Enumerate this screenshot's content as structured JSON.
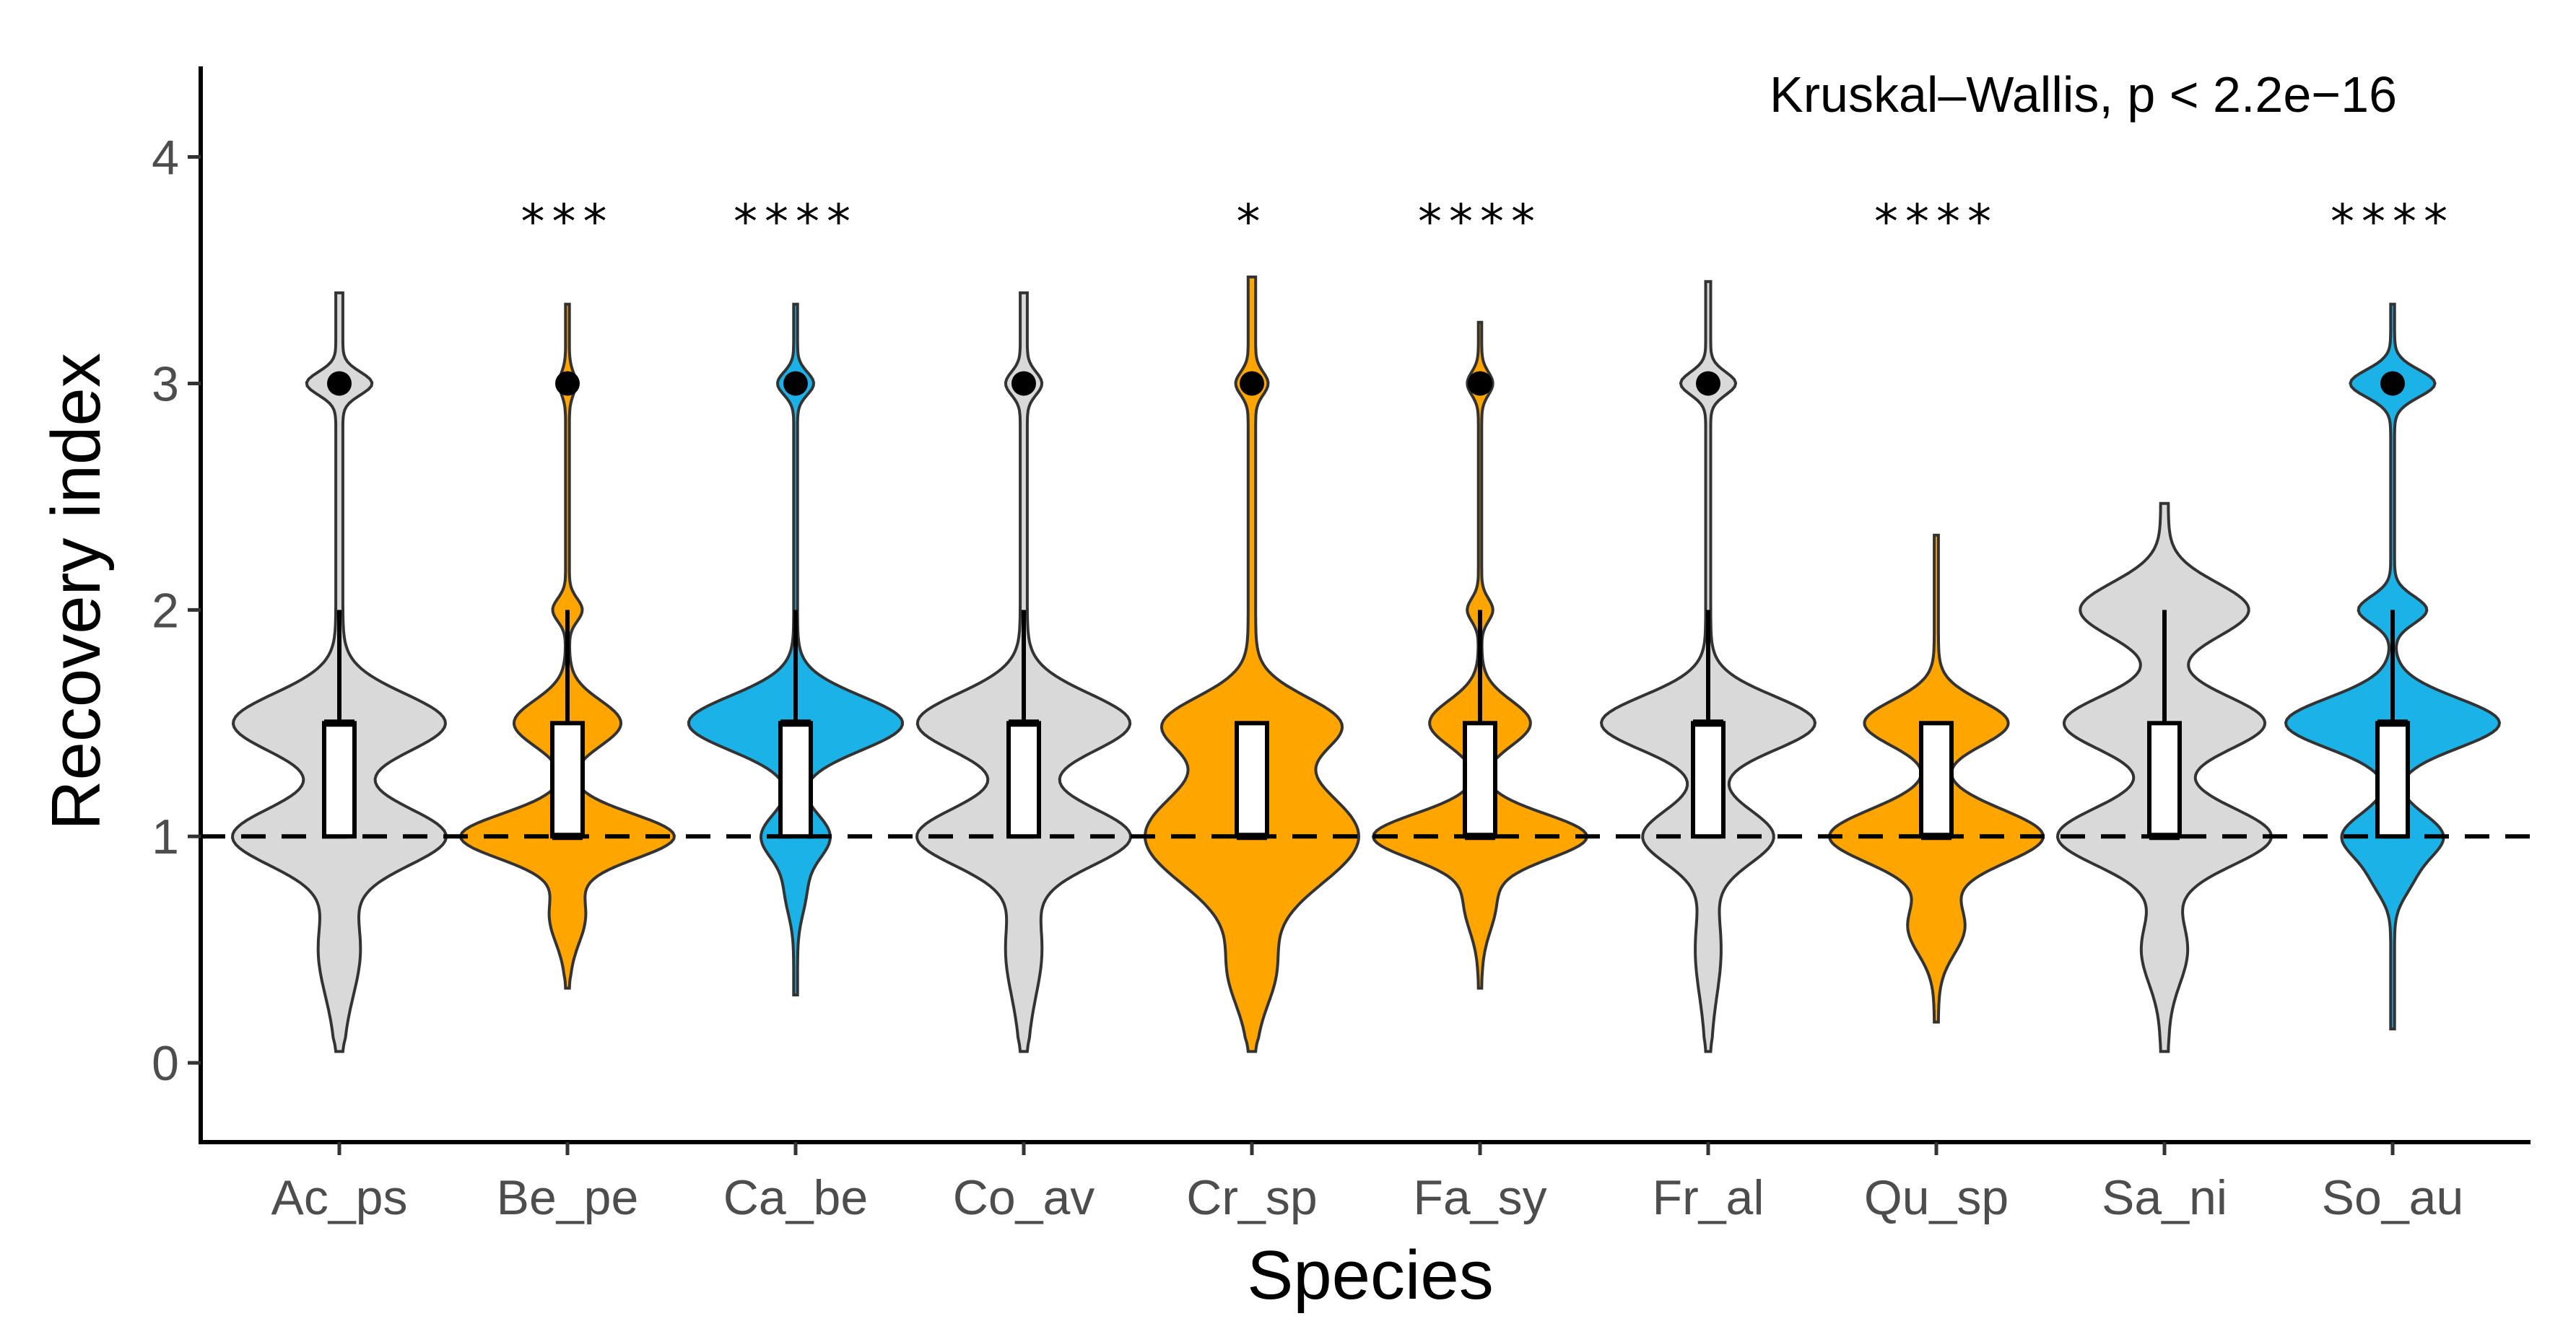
{
  "chart_data": {
    "type": "violin",
    "title": "",
    "xlabel": "Species",
    "ylabel": "Recovery index",
    "ylim": [
      -0.35,
      4.4
    ],
    "yticks": [
      0,
      1,
      2,
      3,
      4
    ],
    "reference_line": {
      "y": 1,
      "style": "dashed"
    },
    "annotation": "Kruskal–Wallis, p < 2.2e−16",
    "colors": {
      "gray": "#d9d9d9",
      "orange": "#ffa500",
      "blue": "#1bb2e8"
    },
    "categories": [
      "Ac_ps",
      "Be_pe",
      "Ca_be",
      "Co_av",
      "Cr_sp",
      "Fa_sy",
      "Fr_al",
      "Qu_sp",
      "Sa_ni",
      "So_au"
    ],
    "significance": [
      "",
      "***",
      "****",
      "",
      "*",
      "****",
      "",
      "****",
      "",
      "****"
    ],
    "fill_group": [
      "gray",
      "orange",
      "blue",
      "gray",
      "orange",
      "orange",
      "gray",
      "orange",
      "gray",
      "blue"
    ],
    "box_q1": [
      1,
      1,
      1,
      1,
      1,
      1,
      1,
      1,
      1,
      1
    ],
    "box_median": [
      1.5,
      1.0,
      1.5,
      1.5,
      1.0,
      1.0,
      1.5,
      1.0,
      1.0,
      1.5
    ],
    "box_q3": [
      1.5,
      1.5,
      1.5,
      1.5,
      1.5,
      1.5,
      1.5,
      1.5,
      1.5,
      1.5
    ],
    "whisker_low": [
      1,
      1,
      1,
      1,
      1,
      1,
      1,
      1,
      1,
      1
    ],
    "whisker_high": [
      2,
      2,
      2,
      2,
      1.5,
      2,
      2,
      1.5,
      2,
      2
    ],
    "outliers": [
      [
        3
      ],
      [
        3
      ],
      [
        3
      ],
      [
        3
      ],
      [
        3
      ],
      [
        3
      ],
      [
        3
      ],
      [],
      [],
      [
        3
      ]
    ],
    "violin_min": [
      0.05,
      0.33,
      0.3,
      0.05,
      0.05,
      0.33,
      0.05,
      0.18,
      0.05,
      0.15
    ],
    "violin_max": [
      3.4,
      3.35,
      3.35,
      3.4,
      3.47,
      3.27,
      3.45,
      2.33,
      2.47,
      3.35
    ],
    "density_modes": [
      [
        [
          1.0,
          0.35,
          0.13
        ],
        [
          1.5,
          0.35,
          0.13
        ],
        [
          3.0,
          0.1,
          0.05
        ],
        [
          0.5,
          0.06,
          0.2
        ]
      ],
      [
        [
          1.0,
          0.65,
          0.1
        ],
        [
          1.5,
          0.32,
          0.1
        ],
        [
          2.0,
          0.08,
          0.05
        ],
        [
          3.0,
          0.04,
          0.05
        ],
        [
          0.65,
          0.1,
          0.12
        ]
      ],
      [
        [
          1.5,
          0.65,
          0.12
        ],
        [
          1.0,
          0.2,
          0.1
        ],
        [
          3.0,
          0.1,
          0.05
        ],
        [
          0.75,
          0.05,
          0.1
        ]
      ],
      [
        [
          1.5,
          0.35,
          0.13
        ],
        [
          1.0,
          0.35,
          0.13
        ],
        [
          3.0,
          0.05,
          0.05
        ],
        [
          0.5,
          0.05,
          0.2
        ]
      ],
      [
        [
          1.0,
          0.33,
          0.22
        ],
        [
          1.5,
          0.25,
          0.12
        ],
        [
          3.0,
          0.04,
          0.05
        ],
        [
          0.4,
          0.06,
          0.15
        ]
      ],
      [
        [
          1.0,
          0.75,
          0.1
        ],
        [
          1.5,
          0.35,
          0.1
        ],
        [
          2.0,
          0.08,
          0.05
        ],
        [
          3.0,
          0.08,
          0.05
        ],
        [
          0.7,
          0.1,
          0.12
        ]
      ],
      [
        [
          1.5,
          0.5,
          0.12
        ],
        [
          1.0,
          0.3,
          0.12
        ],
        [
          3.0,
          0.12,
          0.05
        ],
        [
          0.5,
          0.05,
          0.2
        ]
      ],
      [
        [
          1.0,
          0.6,
          0.12
        ],
        [
          1.5,
          0.4,
          0.1
        ],
        [
          0.6,
          0.15,
          0.12
        ]
      ],
      [
        [
          1.0,
          0.32,
          0.13
        ],
        [
          1.5,
          0.3,
          0.12
        ],
        [
          2.0,
          0.25,
          0.12
        ],
        [
          0.5,
          0.06,
          0.15
        ]
      ],
      [
        [
          1.5,
          0.65,
          0.11
        ],
        [
          1.0,
          0.3,
          0.1
        ],
        [
          2.0,
          0.2,
          0.06
        ],
        [
          3.0,
          0.25,
          0.06
        ],
        [
          0.8,
          0.08,
          0.08
        ]
      ]
    ]
  }
}
